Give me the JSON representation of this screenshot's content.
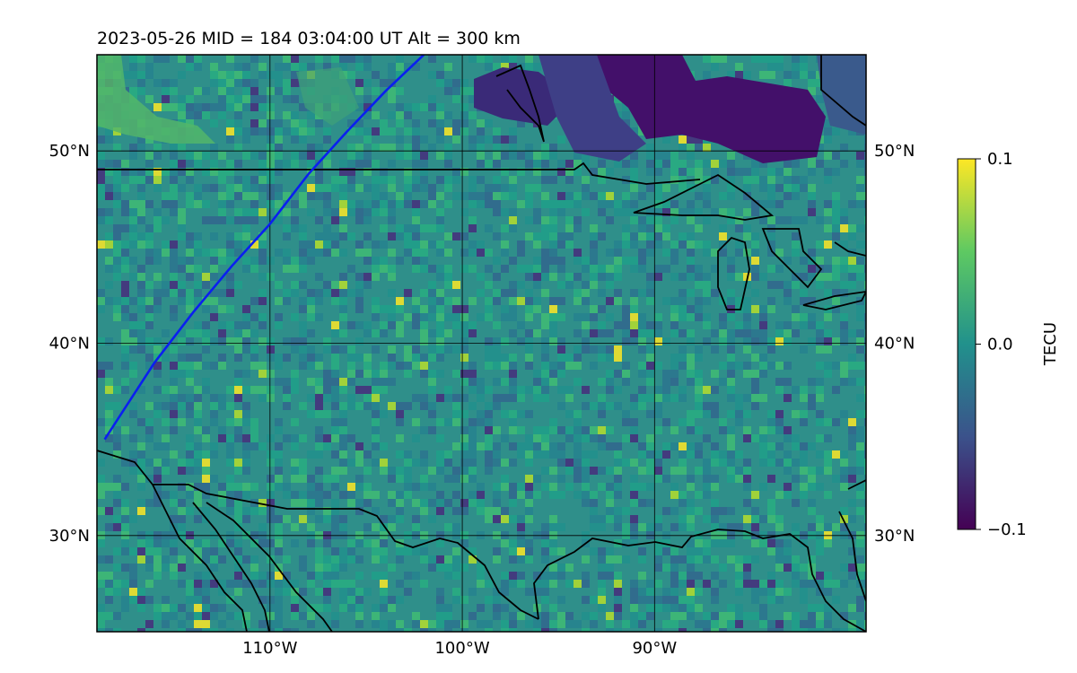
{
  "title": "2023-05-26  MID = 184    03:04:00  UT  Alt = 300 km",
  "map": {
    "lon_range": [
      -119,
      -79
    ],
    "lat_range": [
      25,
      55
    ],
    "x_ticks": [
      {
        "value": -110,
        "label": "110°W"
      },
      {
        "value": -100,
        "label": "100°W"
      },
      {
        "value": -90,
        "label": "90°W"
      }
    ],
    "y_ticks": [
      {
        "value": 30,
        "label": "30°N"
      },
      {
        "value": 40,
        "label": "40°N"
      },
      {
        "value": 50,
        "label": "50°N"
      }
    ],
    "gridlines": true,
    "background_color": "#2f8f8a",
    "boundary_color": "#000000",
    "track_color": "#0a1ff0"
  },
  "colorbar": {
    "label": "TECU",
    "min": -0.1,
    "max": 0.1,
    "ticks": [
      {
        "value": 0.1,
        "label": "0.1"
      },
      {
        "value": 0.0,
        "label": "0.0"
      },
      {
        "value": -0.1,
        "label": "−0.1"
      }
    ],
    "colors": [
      "#440154",
      "#3b528b",
      "#21918c",
      "#5ec962",
      "#fde725"
    ]
  },
  "chart_data": {
    "type": "heatmap",
    "title": "2023-05-26  MID = 184    03:04:00  UT  Alt = 300 km",
    "xlabel": "",
    "ylabel": "",
    "xlim": [
      -119,
      -79
    ],
    "ylim": [
      25,
      55
    ],
    "colorbar_label": "TECU",
    "colorbar_range": [
      -0.1,
      0.1
    ],
    "track": {
      "color": "blue",
      "points": [
        [
          -118.6,
          35.0
        ],
        [
          -117.3,
          37.0
        ],
        [
          -116.0,
          39.0
        ],
        [
          -114.0,
          41.6
        ],
        [
          -112.0,
          44.0
        ],
        [
          -110.0,
          46.2
        ],
        [
          -108.0,
          48.8
        ],
        [
          -106.0,
          51.0
        ],
        [
          -104.0,
          53.1
        ],
        [
          -102.0,
          55.0
        ]
      ]
    },
    "features": [
      {
        "name": "negative-anomaly-north",
        "lon": [
          -99,
          -81
        ],
        "lat": [
          50,
          55
        ],
        "value": -0.09
      },
      {
        "name": "positive-anomaly-northwest",
        "lon": [
          -119,
          -113
        ],
        "lat": [
          51,
          55
        ],
        "value": 0.06
      }
    ]
  }
}
